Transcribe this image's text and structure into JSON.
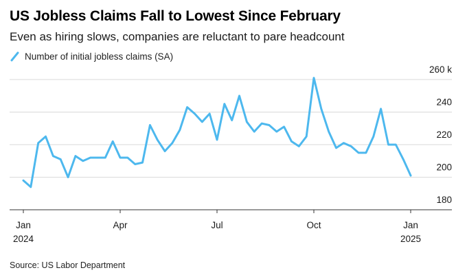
{
  "title": "US Jobless Claims Fall to Lowest Since February",
  "subtitle": "Even as hiring slows, companies are reluctant to pare headcount",
  "source": "Source: US Labor Department",
  "colors": {
    "series": "#4db8ee",
    "grid": "#d9d9d9",
    "axis": "#333333"
  },
  "chart_data": {
    "type": "line",
    "title": "US Jobless Claims Fall to Lowest Since February",
    "xlabel": "",
    "ylabel": "",
    "ylim": [
      180,
      260
    ],
    "grid": true,
    "legend": "top-left",
    "y_axis_side": "right",
    "y_ticks": [
      {
        "value": 180,
        "label": "180"
      },
      {
        "value": 200,
        "label": "200"
      },
      {
        "value": 220,
        "label": "220"
      },
      {
        "value": 240,
        "label": "240"
      },
      {
        "value": 260,
        "label": "260 k"
      }
    ],
    "x_ticks": [
      {
        "index": 0,
        "label": "Jan",
        "sublabel": "2024"
      },
      {
        "index": 13,
        "label": "Apr",
        "sublabel": ""
      },
      {
        "index": 26,
        "label": "Jul",
        "sublabel": ""
      },
      {
        "index": 39,
        "label": "Oct",
        "sublabel": ""
      },
      {
        "index": 52,
        "label": "Jan",
        "sublabel": "2025"
      }
    ],
    "series": [
      {
        "name": "Number of initial jobless claims (SA)",
        "values": [
          198,
          194,
          221,
          225,
          213,
          211,
          200,
          213,
          210,
          212,
          212,
          212,
          222,
          212,
          212,
          208,
          209,
          232,
          223,
          216,
          221,
          229,
          243,
          239,
          234,
          239,
          223,
          245,
          235,
          250,
          234,
          228,
          233,
          232,
          228,
          231,
          222,
          219,
          225,
          261,
          242,
          228,
          218,
          221,
          219,
          215,
          215,
          225,
          242,
          220,
          220,
          211,
          201
        ]
      }
    ]
  }
}
